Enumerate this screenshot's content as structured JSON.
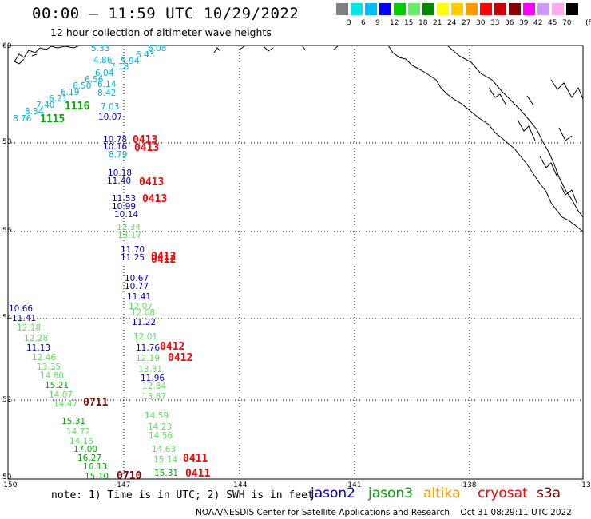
{
  "header": {
    "title": "00:00 — 11:59 UTC 10/29/2022",
    "subtitle": "12 hour collection of altimeter wave heights"
  },
  "colorbar": {
    "colors": [
      "#808080",
      "#00e5e5",
      "#00bfff",
      "#0000ff",
      "#00cc00",
      "#66ee66",
      "#008800",
      "#ffff00",
      "#ffcc00",
      "#ff9900",
      "#ff0000",
      "#cc0000",
      "#880000",
      "#ff00ff",
      "#cc99ff",
      "#ffaaee",
      "#000000"
    ],
    "labels": [
      "3",
      "6",
      "9",
      "12",
      "15",
      "18",
      "21",
      "24",
      "27",
      "30",
      "33",
      "36",
      "39",
      "42",
      "45",
      "70"
    ],
    "unit": "(ft)"
  },
  "map": {
    "lat_labels": [
      "60",
      "58",
      "56",
      "54",
      "52",
      "50"
    ],
    "lon_labels": [
      "-150",
      "-147",
      "-144",
      "-141",
      "-138",
      "-13"
    ],
    "satellite_colors": {
      "jason2": "#0000cc",
      "jason3": "#00aa00",
      "altika": "#ff9900",
      "cryosat": "#ff0000",
      "s3a": "#8b0000",
      "light": "#66dd66",
      "cyan": "#00b0e0"
    },
    "wave_heights": [
      {
        "v": "5.33",
        "c": "cyan"
      },
      {
        "v": "6.08",
        "c": "cyan"
      },
      {
        "v": "6.43",
        "c": "cyan"
      },
      {
        "v": "4.86",
        "c": "cyan"
      },
      {
        "v": "5.94",
        "c": "cyan"
      },
      {
        "v": "7.18",
        "c": "cyan"
      },
      {
        "v": "6.04",
        "c": "cyan"
      },
      {
        "v": "6.56",
        "c": "cyan"
      },
      {
        "v": "6.50",
        "c": "cyan"
      },
      {
        "v": "6.14",
        "c": "cyan"
      },
      {
        "v": "6.19",
        "c": "cyan"
      },
      {
        "v": "8.42",
        "c": "cyan"
      },
      {
        "v": "6.21",
        "c": "cyan"
      },
      {
        "v": "7.40",
        "c": "cyan"
      },
      {
        "v": "7.03",
        "c": "cyan"
      },
      {
        "v": "8.34",
        "c": "cyan"
      },
      {
        "v": "8.76",
        "c": "cyan"
      },
      {
        "v": "10.07",
        "c": "jason2"
      },
      {
        "v": "10.78",
        "c": "jason2"
      },
      {
        "v": "10.16",
        "c": "jason2"
      },
      {
        "v": "8.79",
        "c": "cyan"
      },
      {
        "v": "10.18",
        "c": "jason2"
      },
      {
        "v": "11.40",
        "c": "jason2"
      },
      {
        "v": "11.53",
        "c": "jason2"
      },
      {
        "v": "10.99",
        "c": "jason2"
      },
      {
        "v": "10.14",
        "c": "jason2"
      },
      {
        "v": "12.34",
        "c": "light"
      },
      {
        "v": "13.17",
        "c": "light"
      },
      {
        "v": "11.70",
        "c": "jason2"
      },
      {
        "v": "11.25",
        "c": "jason2"
      },
      {
        "v": "10.67",
        "c": "jason2"
      },
      {
        "v": "10.77",
        "c": "jason2"
      },
      {
        "v": "11.41",
        "c": "jason2"
      },
      {
        "v": "12.07",
        "c": "light"
      },
      {
        "v": "12.08",
        "c": "light"
      },
      {
        "v": "11.22",
        "c": "jason2"
      },
      {
        "v": "10.66",
        "c": "jason2"
      },
      {
        "v": "11.41",
        "c": "jason2"
      },
      {
        "v": "12.18",
        "c": "light"
      },
      {
        "v": "12.28",
        "c": "light"
      },
      {
        "v": "11.13",
        "c": "jason2"
      },
      {
        "v": "12.46",
        "c": "light"
      },
      {
        "v": "13.35",
        "c": "light"
      },
      {
        "v": "14.80",
        "c": "light"
      },
      {
        "v": "15.21",
        "c": "jason3"
      },
      {
        "v": "14.07",
        "c": "light"
      },
      {
        "v": "14.47",
        "c": "light"
      },
      {
        "v": "15.31",
        "c": "jason3"
      },
      {
        "v": "14.72",
        "c": "light"
      },
      {
        "v": "14.15",
        "c": "light"
      },
      {
        "v": "17.00",
        "c": "jason3"
      },
      {
        "v": "16.27",
        "c": "jason3"
      },
      {
        "v": "16.13",
        "c": "jason3"
      },
      {
        "v": "15.10",
        "c": "jason3"
      },
      {
        "v": "12.01",
        "c": "light"
      },
      {
        "v": "11.76",
        "c": "jason2"
      },
      {
        "v": "12.19",
        "c": "light"
      },
      {
        "v": "13.31",
        "c": "light"
      },
      {
        "v": "11.96",
        "c": "jason2"
      },
      {
        "v": "12.84",
        "c": "light"
      },
      {
        "v": "13.87",
        "c": "light"
      },
      {
        "v": "14.59",
        "c": "light"
      },
      {
        "v": "14.23",
        "c": "light"
      },
      {
        "v": "14.56",
        "c": "light"
      },
      {
        "v": "14.63",
        "c": "light"
      },
      {
        "v": "15.14",
        "c": "light"
      },
      {
        "v": "15.31",
        "c": "jason3"
      }
    ],
    "time_labels": [
      {
        "v": "1116",
        "c": "jason3"
      },
      {
        "v": "1115",
        "c": "jason3"
      },
      {
        "v": "0413",
        "c": "cryosat"
      },
      {
        "v": "0413",
        "c": "cryosat"
      },
      {
        "v": "0413",
        "c": "cryosat"
      },
      {
        "v": "0413",
        "c": "cryosat"
      },
      {
        "v": "0412",
        "c": "cryosat"
      },
      {
        "v": "0412",
        "c": "cryosat"
      },
      {
        "v": "0412",
        "c": "cryosat"
      },
      {
        "v": "0412",
        "c": "cryosat"
      },
      {
        "v": "0711",
        "c": "s3a"
      },
      {
        "v": "0710",
        "c": "s3a"
      },
      {
        "v": "0411",
        "c": "cryosat"
      },
      {
        "v": "0411",
        "c": "cryosat"
      }
    ]
  },
  "footer": {
    "note": "note: 1) Time is in UTC; 2) SWH is in feet",
    "legend": [
      {
        "label": "jason2",
        "color": "#0000cc"
      },
      {
        "label": "jason3",
        "color": "#00aa00"
      },
      {
        "label": "altika",
        "color": "#ff9900"
      },
      {
        "label": "cryosat",
        "color": "#ff0000"
      },
      {
        "label": "s3a",
        "color": "#8b0000"
      }
    ],
    "credit": "NOAA/NESDIS Center for Satellite Applications and Research    Oct 31 08:29:11 UTC 2022"
  }
}
